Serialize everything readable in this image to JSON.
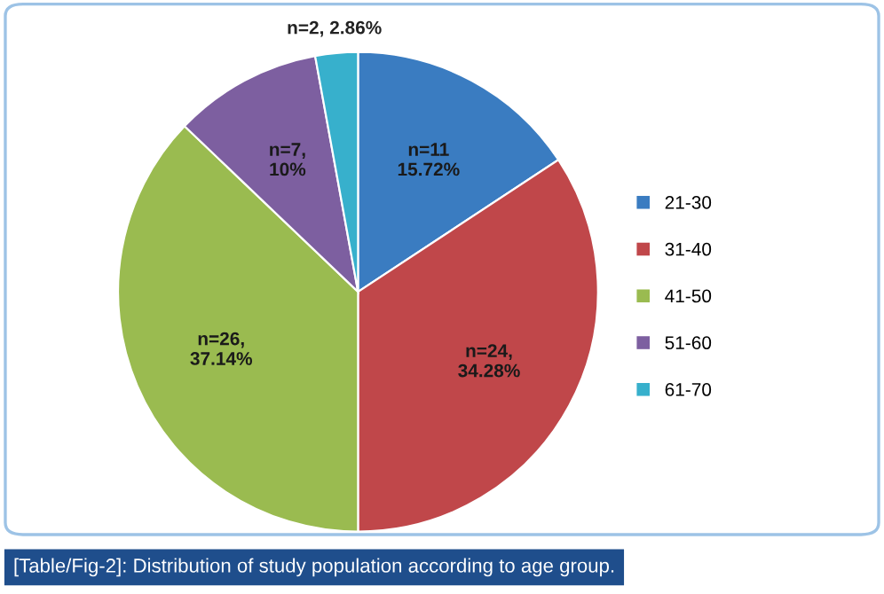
{
  "chart_data": {
    "type": "pie",
    "categories": [
      "21-30",
      "31-40",
      "41-50",
      "51-60",
      "61-70"
    ],
    "values": [
      15.72,
      34.28,
      37.14,
      10,
      2.86
    ],
    "colors": [
      "#3a7cc1",
      "#c0474a",
      "#9abb50",
      "#7d5fa0",
      "#37b0cc"
    ],
    "value_labels": [
      "n=11\n15.72%",
      "n=24,\n34.28%",
      "n=26,\n37.14%",
      "n=7,\n10%",
      "n=2, 2.86%"
    ],
    "legend": "right",
    "annotations": [
      "[Table/Fig-2]: Distribution of study population according to age group."
    ]
  }
}
